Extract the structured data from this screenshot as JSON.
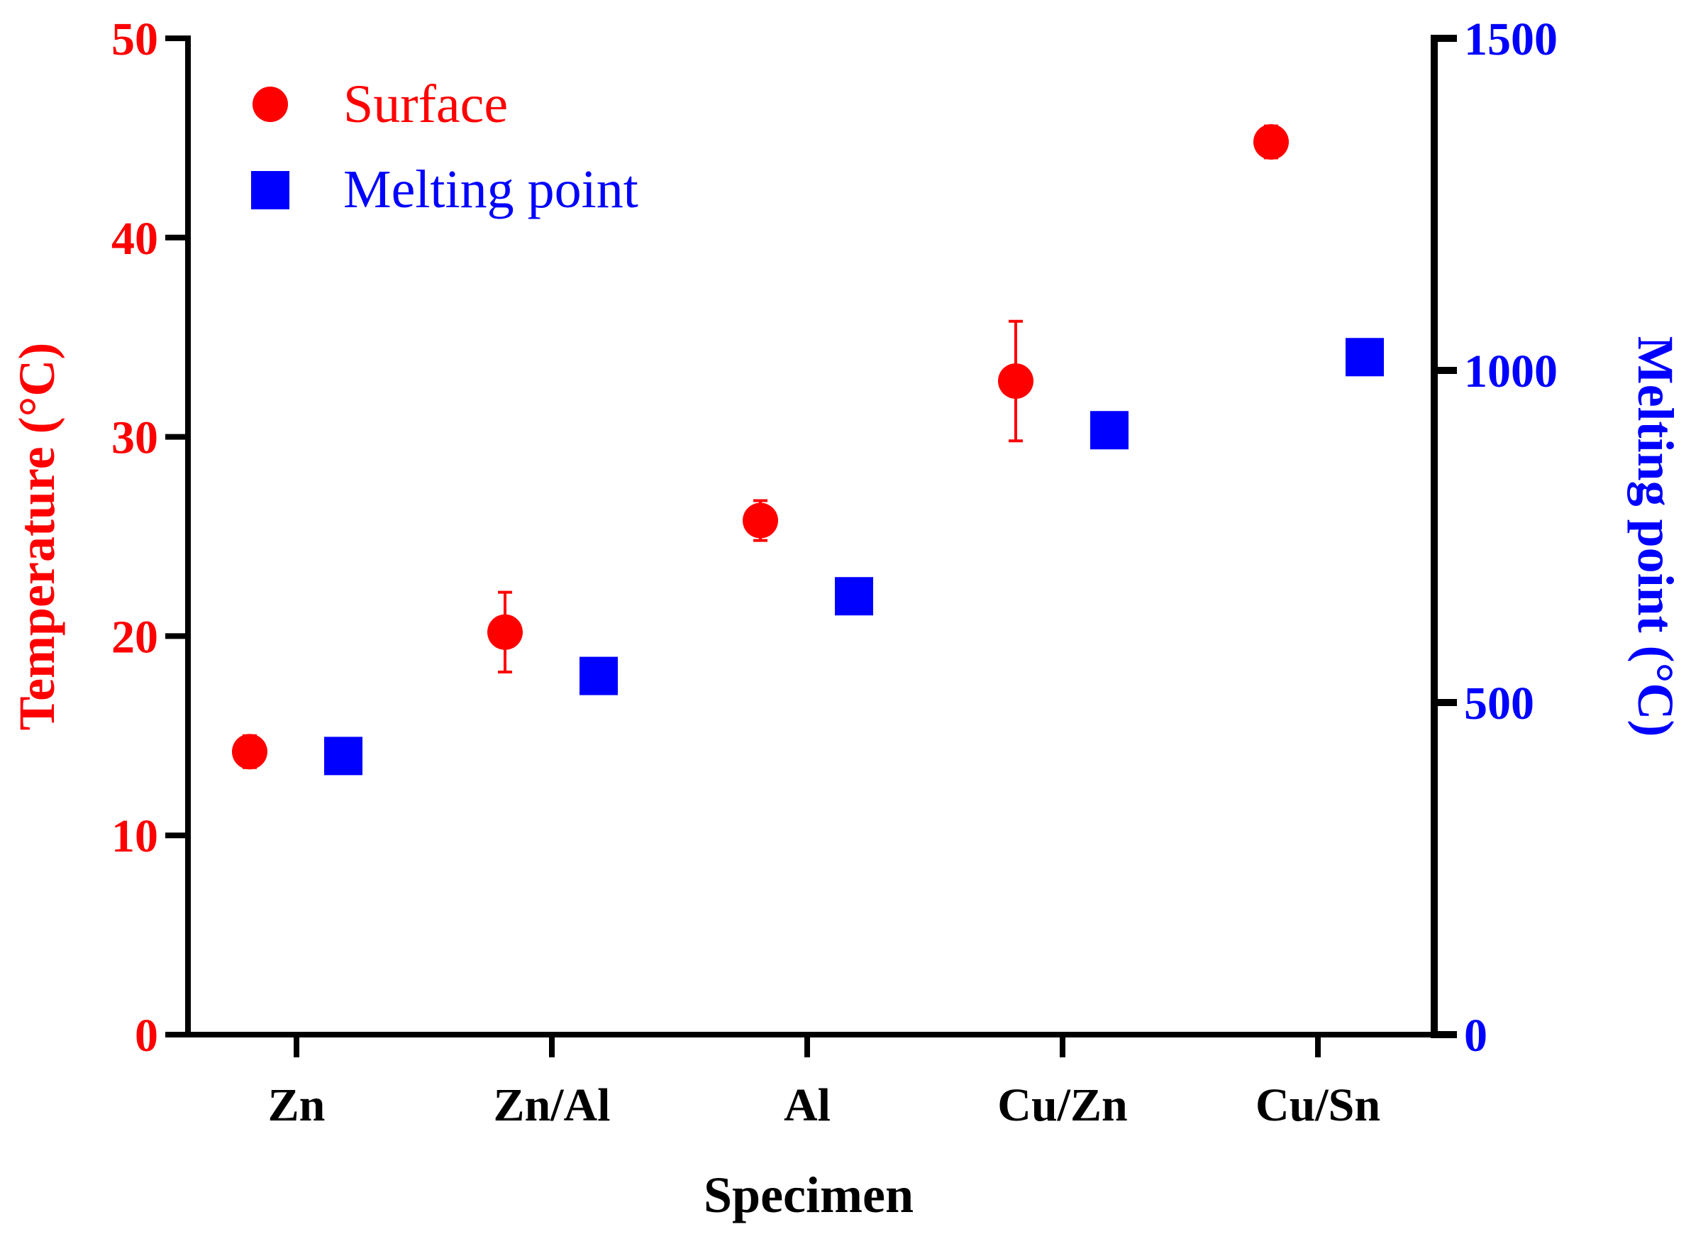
{
  "chart_data": {
    "type": "scatter",
    "title": "",
    "xlabel": "Specimen",
    "ylabel_left": "Temperature (°C)",
    "ylabel_right": "Melting point  (°C)",
    "categories": [
      "Zn",
      "Zn/Al",
      "Al",
      "Cu/Zn",
      "Cu/Sn"
    ],
    "ylim_left": [
      0,
      50
    ],
    "ylim_right": [
      0,
      1500
    ],
    "yticks_left": [
      "0",
      "10",
      "20",
      "30",
      "40",
      "50"
    ],
    "yticks_right": [
      "0",
      "500",
      "1000",
      "1500"
    ],
    "legend_position": "top-left",
    "grid": false,
    "colors": {
      "surface": "#ff0000",
      "melting": "#0000ff",
      "axis": "#000000"
    },
    "series": [
      {
        "name": "Surface",
        "axis": "left",
        "marker": "circle",
        "values": [
          14.2,
          20.2,
          25.8,
          32.8,
          44.8
        ],
        "errors": [
          0.8,
          2.0,
          1.0,
          3.0,
          0.8
        ]
      },
      {
        "name": "Melting point",
        "axis": "right",
        "marker": "square",
        "values": [
          419.5,
          540,
          660,
          910,
          1020
        ]
      }
    ]
  }
}
